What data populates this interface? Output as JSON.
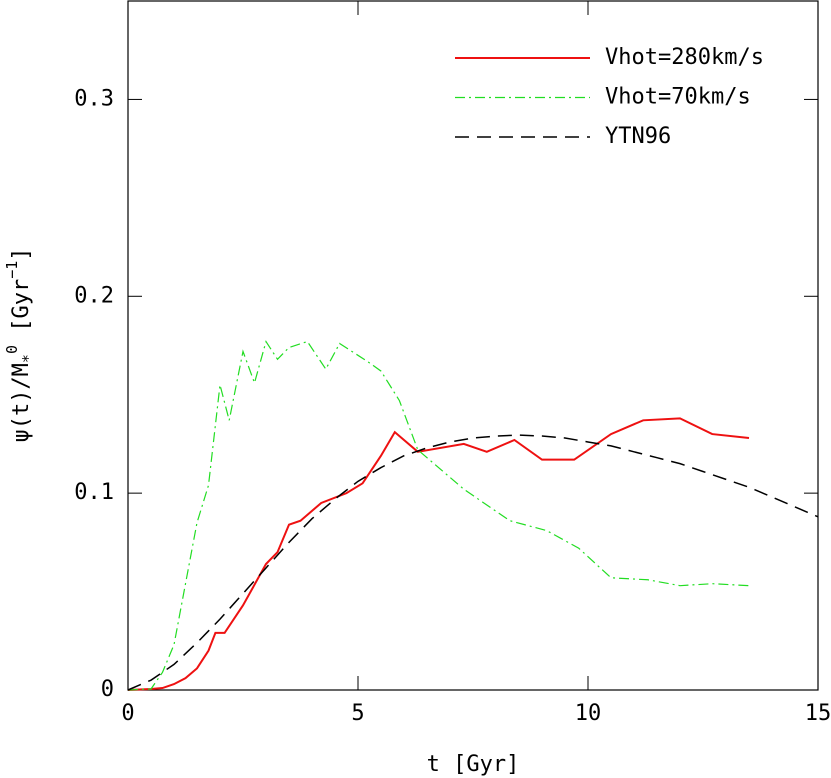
{
  "chart_data": {
    "type": "line",
    "xlabel": "t [Gyr]",
    "ylabel": {
      "main": "ψ(t)/M",
      "sub": "*",
      "sup": "0",
      "unit": " [Gyr",
      "unit_sup": "−1",
      "close": "]"
    },
    "xlim": [
      0,
      15
    ],
    "ylim": [
      0,
      0.35
    ],
    "xticks": [
      0,
      5,
      10,
      15
    ],
    "yticks": [
      0,
      0.1,
      0.2,
      0.3
    ],
    "legend": "upper right",
    "series": [
      {
        "name": "Vhot=280km/s",
        "color": "#ee1111",
        "style": "solid",
        "width": 2,
        "x": [
          0,
          0.5,
          0.75,
          1,
          1.25,
          1.5,
          1.75,
          1.9,
          2.1,
          2.5,
          3,
          3.25,
          3.5,
          3.75,
          4.2,
          4.75,
          5.1,
          5.5,
          5.8,
          6.3,
          7.3,
          7.8,
          8.4,
          9,
          9.7,
          10.5,
          11.2,
          12,
          12.7,
          13.5
        ],
        "values": [
          0,
          0.0005,
          0.001,
          0.003,
          0.006,
          0.011,
          0.02,
          0.029,
          0.029,
          0.043,
          0.064,
          0.07,
          0.084,
          0.086,
          0.095,
          0.1,
          0.105,
          0.119,
          0.131,
          0.121,
          0.125,
          0.121,
          0.127,
          0.117,
          0.117,
          0.13,
          0.137,
          0.138,
          0.13,
          0.128
        ]
      },
      {
        "name": "Vhot=70km/s",
        "color": "#22dd22",
        "style": "dashdot",
        "width": 1.2,
        "x": [
          0,
          0.5,
          0.75,
          1,
          1.25,
          1.5,
          1.75,
          2,
          2.2,
          2.5,
          2.75,
          3,
          3.25,
          3.5,
          3.9,
          4.3,
          4.6,
          5.2,
          5.5,
          5.9,
          6.3,
          7.3,
          8.3,
          9.1,
          9.8,
          10.5,
          11.3,
          12,
          12.7,
          13.5
        ],
        "values": [
          0,
          0.0005,
          0.009,
          0.023,
          0.054,
          0.085,
          0.104,
          0.155,
          0.137,
          0.172,
          0.156,
          0.177,
          0.168,
          0.174,
          0.177,
          0.163,
          0.176,
          0.167,
          0.162,
          0.147,
          0.122,
          0.102,
          0.086,
          0.081,
          0.072,
          0.057,
          0.056,
          0.053,
          0.054,
          0.053
        ]
      },
      {
        "name": "YTN96",
        "color": "#000000",
        "style": "dashed",
        "width": 1.5,
        "x": [
          0,
          0.5,
          1,
          1.5,
          2,
          2.5,
          3,
          3.5,
          4,
          4.5,
          5,
          5.5,
          6,
          6.5,
          7,
          7.5,
          8,
          8.5,
          9,
          9.5,
          10,
          10.5,
          11,
          11.5,
          12,
          12.5,
          13,
          13.5,
          14,
          14.5,
          15
        ],
        "values": [
          0,
          0.005,
          0.013,
          0.024,
          0.036,
          0.049,
          0.062,
          0.075,
          0.087,
          0.097,
          0.106,
          0.113,
          0.119,
          0.123,
          0.126,
          0.128,
          0.129,
          0.1295,
          0.129,
          0.128,
          0.126,
          0.124,
          0.121,
          0.118,
          0.115,
          0.111,
          0.107,
          0.103,
          0.098,
          0.093,
          0.088
        ]
      }
    ]
  }
}
